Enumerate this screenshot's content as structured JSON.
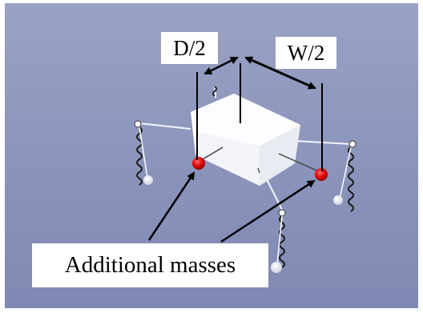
{
  "labels": {
    "half_depth": "D/2",
    "half_width": "W/2",
    "masses": "Additional masses"
  },
  "colors": {
    "background": "#8d96bc",
    "body": "#ffffff",
    "mass": "#e00000",
    "arrow": "#000000"
  }
}
